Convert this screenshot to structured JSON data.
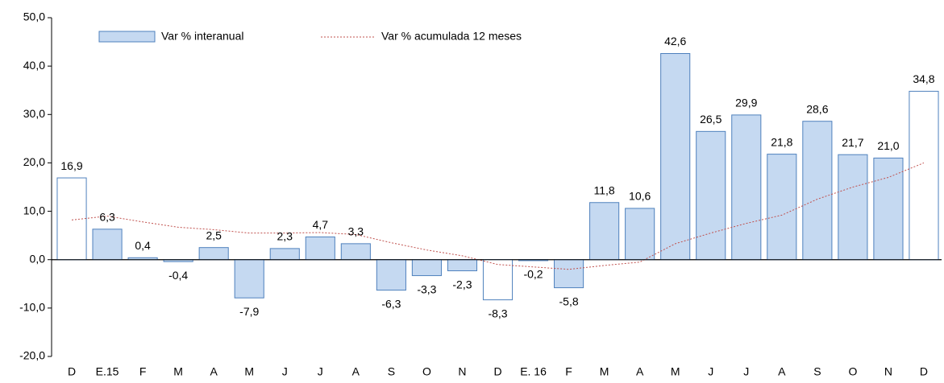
{
  "chart_data": {
    "type": "bar",
    "categories": [
      "D",
      "E.15",
      "F",
      "M",
      "A",
      "M",
      "J",
      "J",
      "A",
      "S",
      "O",
      "N",
      "D",
      "E. 16",
      "F",
      "M",
      "A",
      "M",
      "J",
      "J",
      "A",
      "S",
      "O",
      "N",
      "D"
    ],
    "series": [
      {
        "name": "Var % interanual",
        "type": "bar",
        "color": "#c5d9f1",
        "stroke": "#4f81bd",
        "colors": [
          "#ffffff",
          "#c5d9f1",
          "#c5d9f1",
          "#c5d9f1",
          "#c5d9f1",
          "#c5d9f1",
          "#c5d9f1",
          "#c5d9f1",
          "#c5d9f1",
          "#c5d9f1",
          "#c5d9f1",
          "#c5d9f1",
          "#ffffff",
          "#c5d9f1",
          "#c5d9f1",
          "#c5d9f1",
          "#c5d9f1",
          "#c5d9f1",
          "#c5d9f1",
          "#c5d9f1",
          "#c5d9f1",
          "#c5d9f1",
          "#c5d9f1",
          "#c5d9f1",
          "#ffffff"
        ],
        "values": [
          16.9,
          6.3,
          0.4,
          -0.4,
          2.5,
          -7.9,
          2.3,
          4.7,
          3.3,
          -6.3,
          -3.3,
          -2.3,
          -8.3,
          -0.2,
          -5.8,
          11.8,
          10.6,
          42.6,
          26.5,
          29.9,
          21.8,
          28.6,
          21.7,
          21.0,
          34.8
        ],
        "value_labels": [
          "16,9",
          "6,3",
          "0,4",
          "-0,4",
          "2,5",
          "-7,9",
          "2,3",
          "4,7",
          "3,3",
          "-6,3",
          "-3,3",
          "-2,3",
          "-8,3",
          "-0,2",
          "-5,8",
          "11,8",
          "10,6",
          "42,6",
          "26,5",
          "29,9",
          "21,8",
          "28,6",
          "21,7",
          "21,0",
          "34,8"
        ]
      },
      {
        "name": "Var % acumulada 12 meses",
        "type": "line",
        "color": "#c0504d",
        "dashed": true,
        "values": [
          8.2,
          9.0,
          7.8,
          6.7,
          6.2,
          5.5,
          5.5,
          5.6,
          5.2,
          3.5,
          2.0,
          0.8,
          -1.0,
          -1.5,
          -2.0,
          -1.2,
          -0.5,
          3.3,
          5.5,
          7.5,
          9.2,
          12.5,
          15.0,
          17.0,
          20.0
        ]
      }
    ],
    "ylim": [
      -20,
      50
    ],
    "yticks": [
      {
        "value": -20,
        "label": "-20,0"
      },
      {
        "value": -10,
        "label": "-10,0"
      },
      {
        "value": 0,
        "label": "0,0"
      },
      {
        "value": 10,
        "label": "10,0"
      },
      {
        "value": 20,
        "label": "20,0"
      },
      {
        "value": 30,
        "label": "30,0"
      },
      {
        "value": 40,
        "label": "40,0"
      },
      {
        "value": 50,
        "label": "50,0"
      }
    ],
    "grid": false
  }
}
